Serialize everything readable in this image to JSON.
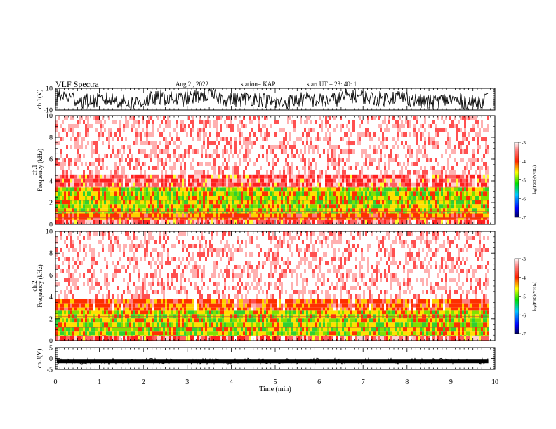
{
  "header": {
    "title": "VLF Spectra",
    "date": "Aug.2 , 2022",
    "station": "station= KAP",
    "start": "start UT = 23: 40: 1"
  },
  "chart_data": [
    {
      "type": "line",
      "id": "ch1-waveform",
      "ylabel": "ch.1(V)",
      "ylim": [
        -10,
        10
      ],
      "yticks": [
        "10",
        "-10"
      ],
      "xlim": [
        0,
        10
      ],
      "data_end": 9.85,
      "color": "#000000"
    },
    {
      "type": "heatmap",
      "id": "ch1-spectrogram",
      "ylabel": "ch.1 Frequency (kHz)",
      "ylim": [
        0,
        10
      ],
      "yticks": [
        "0",
        "2",
        "4",
        "6",
        "8",
        "10"
      ],
      "xlim": [
        0,
        10
      ],
      "data_end": 9.85,
      "bands": [
        {
          "from": 0,
          "to": 0.4,
          "level": 0.8
        },
        {
          "from": 0.4,
          "to": 1.0,
          "level": 0.55
        },
        {
          "from": 1.0,
          "to": 3.4,
          "level": 0.45
        },
        {
          "from": 3.4,
          "to": 4.6,
          "level": 0.78
        },
        {
          "from": 4.6,
          "to": 10,
          "level": 0.95
        }
      ],
      "colorbar": {
        "label": "log(PSD)(V²/Hz)",
        "range": [
          -7,
          -3
        ],
        "ticks": [
          "-3",
          "-4",
          "-5",
          "-6",
          "-7"
        ]
      }
    },
    {
      "type": "heatmap",
      "id": "ch2-spectrogram",
      "ylabel": "ch.2 Frequency (kHz)",
      "ylim": [
        0,
        10
      ],
      "yticks": [
        "0",
        "2",
        "4",
        "6",
        "8",
        "10"
      ],
      "xlim": [
        0,
        10
      ],
      "data_end": 9.85,
      "bands": [
        {
          "from": 0,
          "to": 0.4,
          "level": 0.8
        },
        {
          "from": 0.4,
          "to": 2.8,
          "level": 0.45
        },
        {
          "from": 2.8,
          "to": 3.8,
          "level": 0.7
        },
        {
          "from": 3.8,
          "to": 10,
          "level": 0.95
        }
      ],
      "colorbar": {
        "label": "log(PSD)(V²/Hz)",
        "range": [
          -7,
          -3
        ],
        "ticks": [
          "-3",
          "-4",
          "-5",
          "-6",
          "-7"
        ]
      }
    },
    {
      "type": "line",
      "id": "ch3-waveform",
      "ylabel": "ch.3(V)",
      "ylim": [
        -5,
        5
      ],
      "yticks": [
        "5",
        "0",
        "-5"
      ],
      "xlim": [
        0,
        10
      ],
      "data_end": 9.85,
      "level": -1.2,
      "color": "#000000"
    }
  ],
  "xaxis": {
    "label": "Time (min)",
    "ticks": [
      "0",
      "1",
      "2",
      "3",
      "4",
      "5",
      "6",
      "7",
      "8",
      "9",
      "10"
    ]
  }
}
